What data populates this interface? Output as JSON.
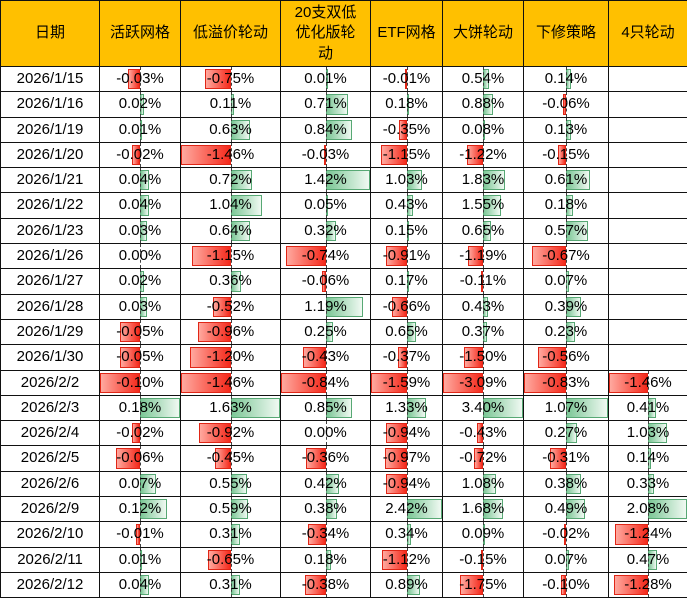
{
  "colors": {
    "header_bg": "#FFC000",
    "positive_bar": "#7CC796",
    "positive_border": "#57A874",
    "negative_bar": "#F5291B",
    "negative_border": "#E02616"
  },
  "chart_data": {
    "type": "table",
    "note": "daily returns per strategy; data bars scaled per column, dashed axis at cell midpoint"
  },
  "table": {
    "columns": [
      {
        "label": "日期"
      },
      {
        "label": "活跃网格"
      },
      {
        "label": "低溢价轮动"
      },
      {
        "label": "20支双低\n优化版轮\n动"
      },
      {
        "label": "ETF网格"
      },
      {
        "label": "大饼轮动"
      },
      {
        "label": "下修策略"
      },
      {
        "label": "4只轮动"
      }
    ],
    "rows": [
      {
        "date": "2026/1/15",
        "values": [
          "-0.03%",
          "-0.75%",
          "0.01%",
          "-0.01%",
          "0.54%",
          "0.14%",
          null
        ]
      },
      {
        "date": "2026/1/16",
        "values": [
          "0.02%",
          "0.11%",
          "0.71%",
          "0.18%",
          "0.88%",
          "-0.06%",
          null
        ]
      },
      {
        "date": "2026/1/19",
        "values": [
          "0.01%",
          "0.63%",
          "0.84%",
          "-0.35%",
          "0.08%",
          "0.13%",
          null
        ]
      },
      {
        "date": "2026/1/20",
        "values": [
          "-0.02%",
          "-1.46%",
          "-0.03%",
          "-1.15%",
          "-1.22%",
          "-0.15%",
          null
        ]
      },
      {
        "date": "2026/1/21",
        "values": [
          "0.04%",
          "0.72%",
          "1.42%",
          "1.03%",
          "1.83%",
          "0.61%",
          null
        ]
      },
      {
        "date": "2026/1/22",
        "values": [
          "0.04%",
          "1.04%",
          "0.05%",
          "0.43%",
          "1.55%",
          "0.18%",
          null
        ]
      },
      {
        "date": "2026/1/23",
        "values": [
          "0.03%",
          "0.64%",
          "0.32%",
          "0.15%",
          "0.65%",
          "0.57%",
          null
        ]
      },
      {
        "date": "2026/1/26",
        "values": [
          "0.00%",
          "-1.15%",
          "-0.74%",
          "-0.91%",
          "-1.19%",
          "-0.67%",
          null
        ]
      },
      {
        "date": "2026/1/27",
        "values": [
          "0.02%",
          "0.36%",
          "-0.06%",
          "0.17%",
          "-0.11%",
          "0.07%",
          null
        ]
      },
      {
        "date": "2026/1/28",
        "values": [
          "0.03%",
          "-0.52%",
          "1.19%",
          "-0.66%",
          "0.43%",
          "0.39%",
          null
        ]
      },
      {
        "date": "2026/1/29",
        "values": [
          "-0.05%",
          "-0.96%",
          "0.25%",
          "0.65%",
          "0.37%",
          "0.23%",
          null
        ]
      },
      {
        "date": "2026/1/30",
        "values": [
          "-0.05%",
          "-1.20%",
          "-0.43%",
          "-0.37%",
          "-1.50%",
          "-0.56%",
          null
        ]
      },
      {
        "date": "2026/2/2",
        "values": [
          "-0.10%",
          "-1.46%",
          "-0.84%",
          "-1.59%",
          "-3.09%",
          "-0.83%",
          "-1.46%"
        ]
      },
      {
        "date": "2026/2/3",
        "values": [
          "0.18%",
          "1.63%",
          "0.85%",
          "1.33%",
          "3.40%",
          "1.07%",
          "0.41%"
        ]
      },
      {
        "date": "2026/2/4",
        "values": [
          "-0.02%",
          "-0.92%",
          "0.00%",
          "-0.94%",
          "-0.43%",
          "0.27%",
          "1.03%"
        ]
      },
      {
        "date": "2026/2/5",
        "values": [
          "-0.06%",
          "-0.45%",
          "-0.36%",
          "-0.97%",
          "-0.72%",
          "-0.31%",
          "0.14%"
        ]
      },
      {
        "date": "2026/2/6",
        "values": [
          "0.07%",
          "0.55%",
          "0.42%",
          "-0.94%",
          "1.08%",
          "0.38%",
          "0.33%"
        ]
      },
      {
        "date": "2026/2/9",
        "values": [
          "0.12%",
          "0.59%",
          "0.38%",
          "2.42%",
          "1.68%",
          "0.49%",
          "2.08%"
        ]
      },
      {
        "date": "2026/2/10",
        "values": [
          "-0.01%",
          "0.31%",
          "-0.34%",
          "0.34%",
          "0.09%",
          "-0.02%",
          "-1.24%"
        ]
      },
      {
        "date": "2026/2/11",
        "values": [
          "0.01%",
          "-0.65%",
          "0.18%",
          "-1.12%",
          "-0.15%",
          "0.07%",
          "0.47%"
        ]
      },
      {
        "date": "2026/2/12",
        "values": [
          "0.04%",
          "0.31%",
          "-0.38%",
          "0.89%",
          "-1.75%",
          "-0.10%",
          "-1.28%"
        ]
      }
    ]
  }
}
